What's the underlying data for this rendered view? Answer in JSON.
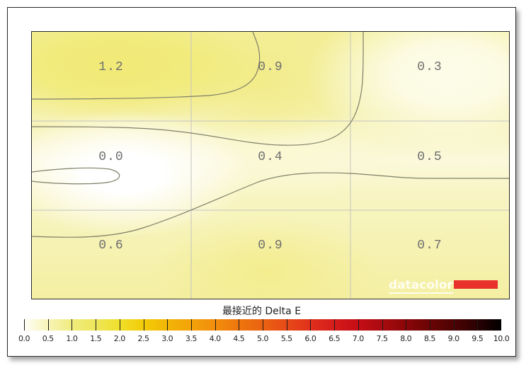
{
  "chart_data": {
    "type": "heatmap",
    "title": "最接近的 Delta E",
    "grid": true,
    "rows": 3,
    "cols": 3,
    "values": [
      [
        1.2,
        0.9,
        0.3
      ],
      [
        0.0,
        0.4,
        0.5
      ],
      [
        0.6,
        0.9,
        0.7
      ]
    ],
    "labels": [
      [
        "1.2",
        "0.9",
        "0.3"
      ],
      [
        "0.0",
        "0.4",
        "0.5"
      ],
      [
        "0.6",
        "0.9",
        "0.7"
      ]
    ],
    "colorbar": {
      "min": 0.0,
      "max": 10.0,
      "step": 0.5,
      "tick_labels": [
        "0.0",
        "0.5",
        "1.0",
        "1.5",
        "2.0",
        "2.5",
        "3.0",
        "3.5",
        "4.0",
        "4.5",
        "5.0",
        "5.5",
        "6.0",
        "6.5",
        "7.0",
        "7.5",
        "8.0",
        "8.5",
        "9.0",
        "9.5",
        "10.0"
      ],
      "colors": [
        "#fffef5",
        "#f7f3b8",
        "#f0ec7e",
        "#eee65a",
        "#f0df2a",
        "#f3cb08",
        "#f2b605",
        "#f3a20a",
        "#f28d0c",
        "#ee760e",
        "#ea6210",
        "#e84a18",
        "#e0301c",
        "#d51b1b",
        "#c50d15",
        "#a80b10",
        "#8a0608",
        "#6b0405",
        "#4c0203",
        "#2a0102",
        "#000000"
      ]
    }
  },
  "colorbar_title": "最接近的 Delta E",
  "logo": {
    "text": "datacolor",
    "bar_color": "#e8312b"
  }
}
